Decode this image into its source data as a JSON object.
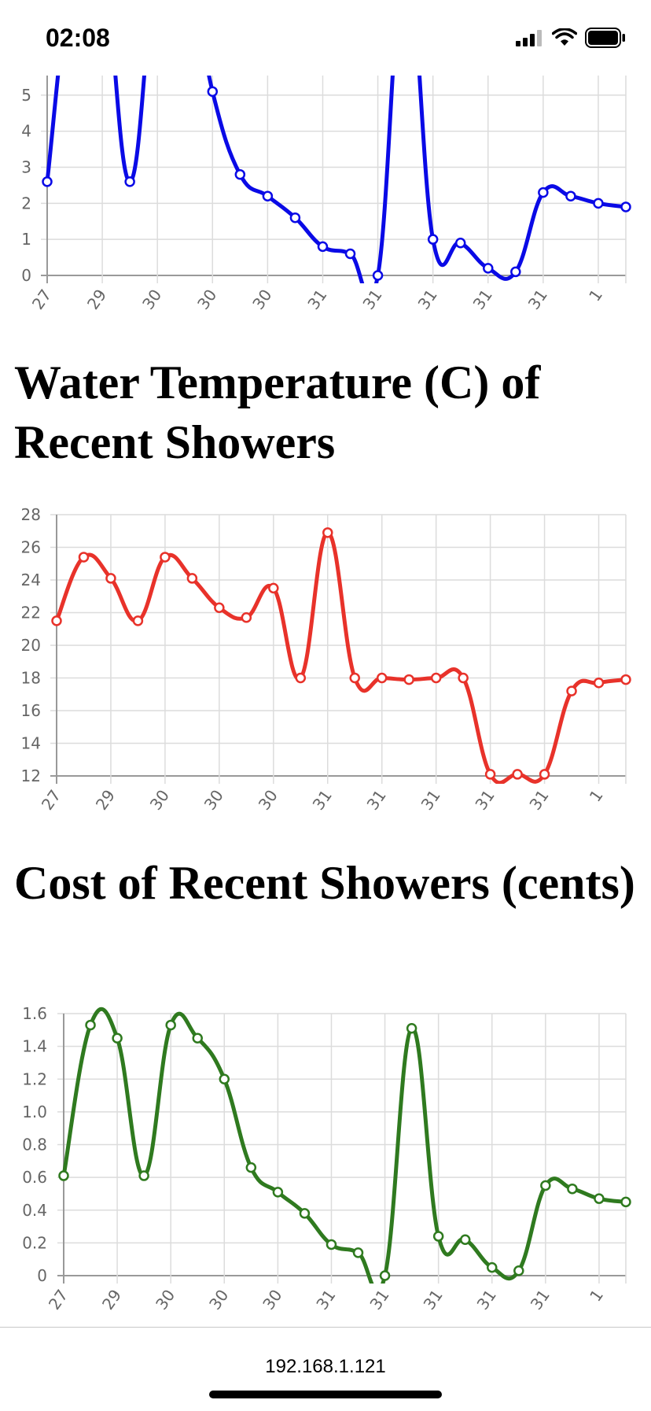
{
  "status_bar": {
    "time": "02:08"
  },
  "browser": {
    "url": "192.168.1.121"
  },
  "titles": {
    "temperature": "Water Temperature (C) of Recent Showers",
    "cost": "Cost of Recent Showers (cents)"
  },
  "chart_data": [
    {
      "type": "line",
      "title": "",
      "xlabel": "",
      "ylabel": "",
      "categories": [
        "27",
        "27",
        "29",
        "29",
        "30",
        "30",
        "30",
        "30",
        "30",
        "30",
        "31",
        "31",
        "31",
        "31",
        "31",
        "31",
        "31",
        "31",
        "31",
        "31",
        "1",
        "1"
      ],
      "x_tick_labels": [
        "27",
        "29",
        "30",
        "30",
        "30",
        "31",
        "31",
        "31",
        "31",
        "31",
        "1"
      ],
      "ylim": [
        0,
        5.5
      ],
      "y_ticks": [
        0,
        1,
        2,
        3,
        4,
        5
      ],
      "grid": true,
      "smooth": true,
      "clipped_top": true,
      "series": [
        {
          "color": "#0a0ae6",
          "values": [
            2.6,
            9.0,
            9.0,
            2.6,
            9.0,
            9.0,
            5.1,
            2.8,
            2.2,
            1.6,
            0.8,
            0.6,
            0.0,
            9.0,
            1.0,
            0.9,
            0.2,
            0.1,
            2.3,
            2.2,
            2.0,
            1.9
          ]
        }
      ]
    },
    {
      "type": "line",
      "title": "",
      "xlabel": "",
      "ylabel": "",
      "categories": [
        "27",
        "27",
        "29",
        "29",
        "30",
        "30",
        "30",
        "30",
        "30",
        "30",
        "31",
        "31",
        "31",
        "31",
        "31",
        "31",
        "31",
        "31",
        "31",
        "31",
        "1",
        "1"
      ],
      "x_tick_labels": [
        "27",
        "29",
        "30",
        "30",
        "30",
        "31",
        "31",
        "31",
        "31",
        "31",
        "1"
      ],
      "ylim": [
        12,
        28
      ],
      "y_ticks": [
        12,
        14,
        16,
        18,
        20,
        22,
        24,
        26,
        28
      ],
      "grid": true,
      "smooth": true,
      "series": [
        {
          "color": "#e8322a",
          "values": [
            21.5,
            25.4,
            24.1,
            21.5,
            25.4,
            24.1,
            22.3,
            21.7,
            23.5,
            18.0,
            26.9,
            18.0,
            18.0,
            17.9,
            18.0,
            18.0,
            12.1,
            12.1,
            12.1,
            17.2,
            17.7,
            17.9
          ]
        }
      ]
    },
    {
      "type": "line",
      "title": "",
      "xlabel": "",
      "ylabel": "",
      "categories": [
        "27",
        "27",
        "29",
        "29",
        "30",
        "30",
        "30",
        "30",
        "30",
        "30",
        "31",
        "31",
        "31",
        "31",
        "31",
        "31",
        "31",
        "31",
        "31",
        "31",
        "1",
        "1"
      ],
      "x_tick_labels": [
        "27",
        "29",
        "30",
        "30",
        "30",
        "31",
        "31",
        "31",
        "31",
        "31",
        "1"
      ],
      "ylim": [
        0,
        1.6
      ],
      "y_ticks": [
        0,
        0.2,
        0.4,
        0.6,
        0.8,
        1.0,
        1.2,
        1.4,
        1.6
      ],
      "y_tick_labels": [
        "0",
        "0.2",
        "0.4",
        "0.6",
        "0.8",
        "1.0",
        "1.2",
        "1.4",
        "1.6"
      ],
      "grid": true,
      "smooth": true,
      "series": [
        {
          "color": "#2f7a1f",
          "values": [
            0.61,
            1.53,
            1.45,
            0.61,
            1.53,
            1.45,
            1.2,
            0.66,
            0.51,
            0.38,
            0.19,
            0.14,
            0.0,
            1.51,
            0.24,
            0.22,
            0.05,
            0.03,
            0.55,
            0.53,
            0.47,
            0.45
          ]
        }
      ]
    }
  ]
}
